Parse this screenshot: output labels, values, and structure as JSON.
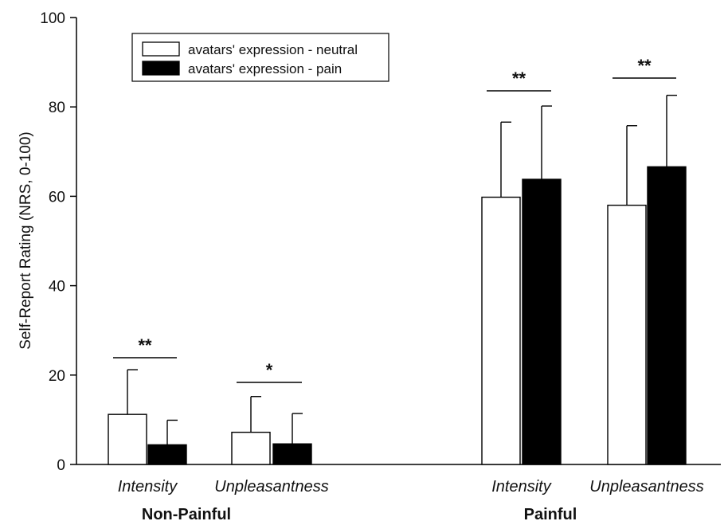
{
  "chart_data": {
    "type": "bar",
    "ylabel": "Self-Report Rating (NRS, 0-100)",
    "ylim": [
      0,
      100
    ],
    "yticks": [
      0,
      20,
      40,
      60,
      80,
      100
    ],
    "groups": [
      "Non-Painful",
      "Painful"
    ],
    "categories": [
      {
        "label": "Intensity",
        "group": "Non-Painful"
      },
      {
        "label": "Unpleasantness",
        "group": "Non-Painful"
      },
      {
        "label": "Intensity",
        "group": "Painful"
      },
      {
        "label": "Unpleasantness",
        "group": "Painful"
      }
    ],
    "series": [
      {
        "name": "avatars' expression - neutral",
        "color": "#ffffff",
        "values": [
          11.2,
          7.2,
          59.8,
          58.0
        ],
        "error": [
          10.0,
          8.0,
          16.8,
          17.8
        ]
      },
      {
        "name": "avatars' expression - pain",
        "color": "#000000",
        "values": [
          4.4,
          4.6,
          63.8,
          66.6
        ],
        "error": [
          5.5,
          6.8,
          16.4,
          16.0
        ]
      }
    ],
    "significance": [
      "**",
      "*",
      "**",
      "**"
    ],
    "legend": "top-left"
  }
}
